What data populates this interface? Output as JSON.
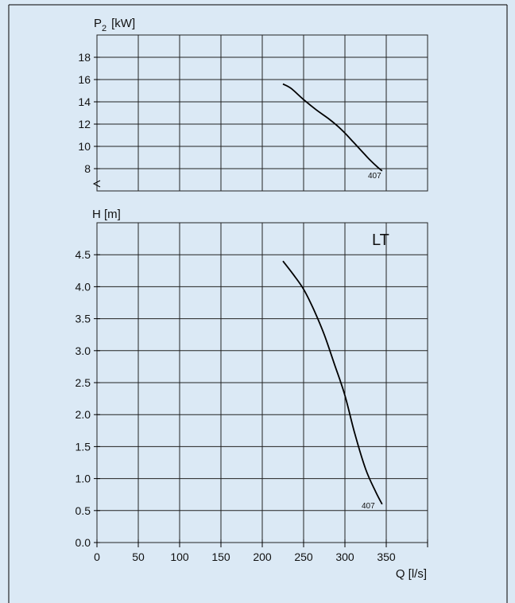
{
  "colors": {
    "background": "#dbe9f5",
    "plot_background": "#dbe9f5",
    "grid": "#222222",
    "curve": "#000000"
  },
  "chart_data": [
    {
      "type": "line",
      "title": "",
      "ylabel_symbol": "P",
      "ylabel_subscript": "2",
      "ylabel_unit": "[kW]",
      "xlabel": "",
      "xlim": [
        0,
        400
      ],
      "ylim": [
        6,
        20
      ],
      "x_ticks": [
        0,
        50,
        100,
        150,
        200,
        250,
        300,
        350
      ],
      "y_ticks": [
        8,
        10,
        12,
        14,
        16,
        18
      ],
      "y_tick_labels": [
        "8",
        "10",
        "12",
        "14",
        "16",
        "18"
      ],
      "axis_break": true,
      "grid": true,
      "series": [
        {
          "name": "407",
          "x": [
            225,
            235,
            250,
            265,
            280,
            290,
            300,
            310,
            320,
            330,
            340,
            345
          ],
          "y": [
            15.6,
            15.2,
            14.2,
            13.3,
            12.5,
            11.9,
            11.2,
            10.4,
            9.6,
            8.8,
            8.1,
            7.8
          ]
        }
      ]
    },
    {
      "type": "line",
      "title": "",
      "ylabel": "H [m]",
      "xlabel": "Q [l/s]",
      "annotation": "LT",
      "xlim": [
        0,
        400
      ],
      "ylim": [
        0,
        5
      ],
      "x_ticks": [
        0,
        50,
        100,
        150,
        200,
        250,
        300,
        350
      ],
      "x_tick_labels": [
        "0",
        "50",
        "100",
        "150",
        "200",
        "250",
        "300",
        "350"
      ],
      "y_ticks": [
        0,
        0.5,
        1.0,
        1.5,
        2.0,
        2.5,
        3.0,
        3.5,
        4.0,
        4.5
      ],
      "y_tick_labels": [
        "0.0",
        "0.5",
        "1.0",
        "1.5",
        "2.0",
        "2.5",
        "3.0",
        "3.5",
        "4.0",
        "4.5"
      ],
      "grid": true,
      "series": [
        {
          "name": "407",
          "x": [
            225,
            237,
            250,
            262,
            275,
            287,
            300,
            312,
            325,
            337,
            345
          ],
          "y": [
            4.4,
            4.2,
            3.96,
            3.65,
            3.25,
            2.8,
            2.3,
            1.7,
            1.15,
            0.8,
            0.6
          ]
        }
      ]
    }
  ]
}
